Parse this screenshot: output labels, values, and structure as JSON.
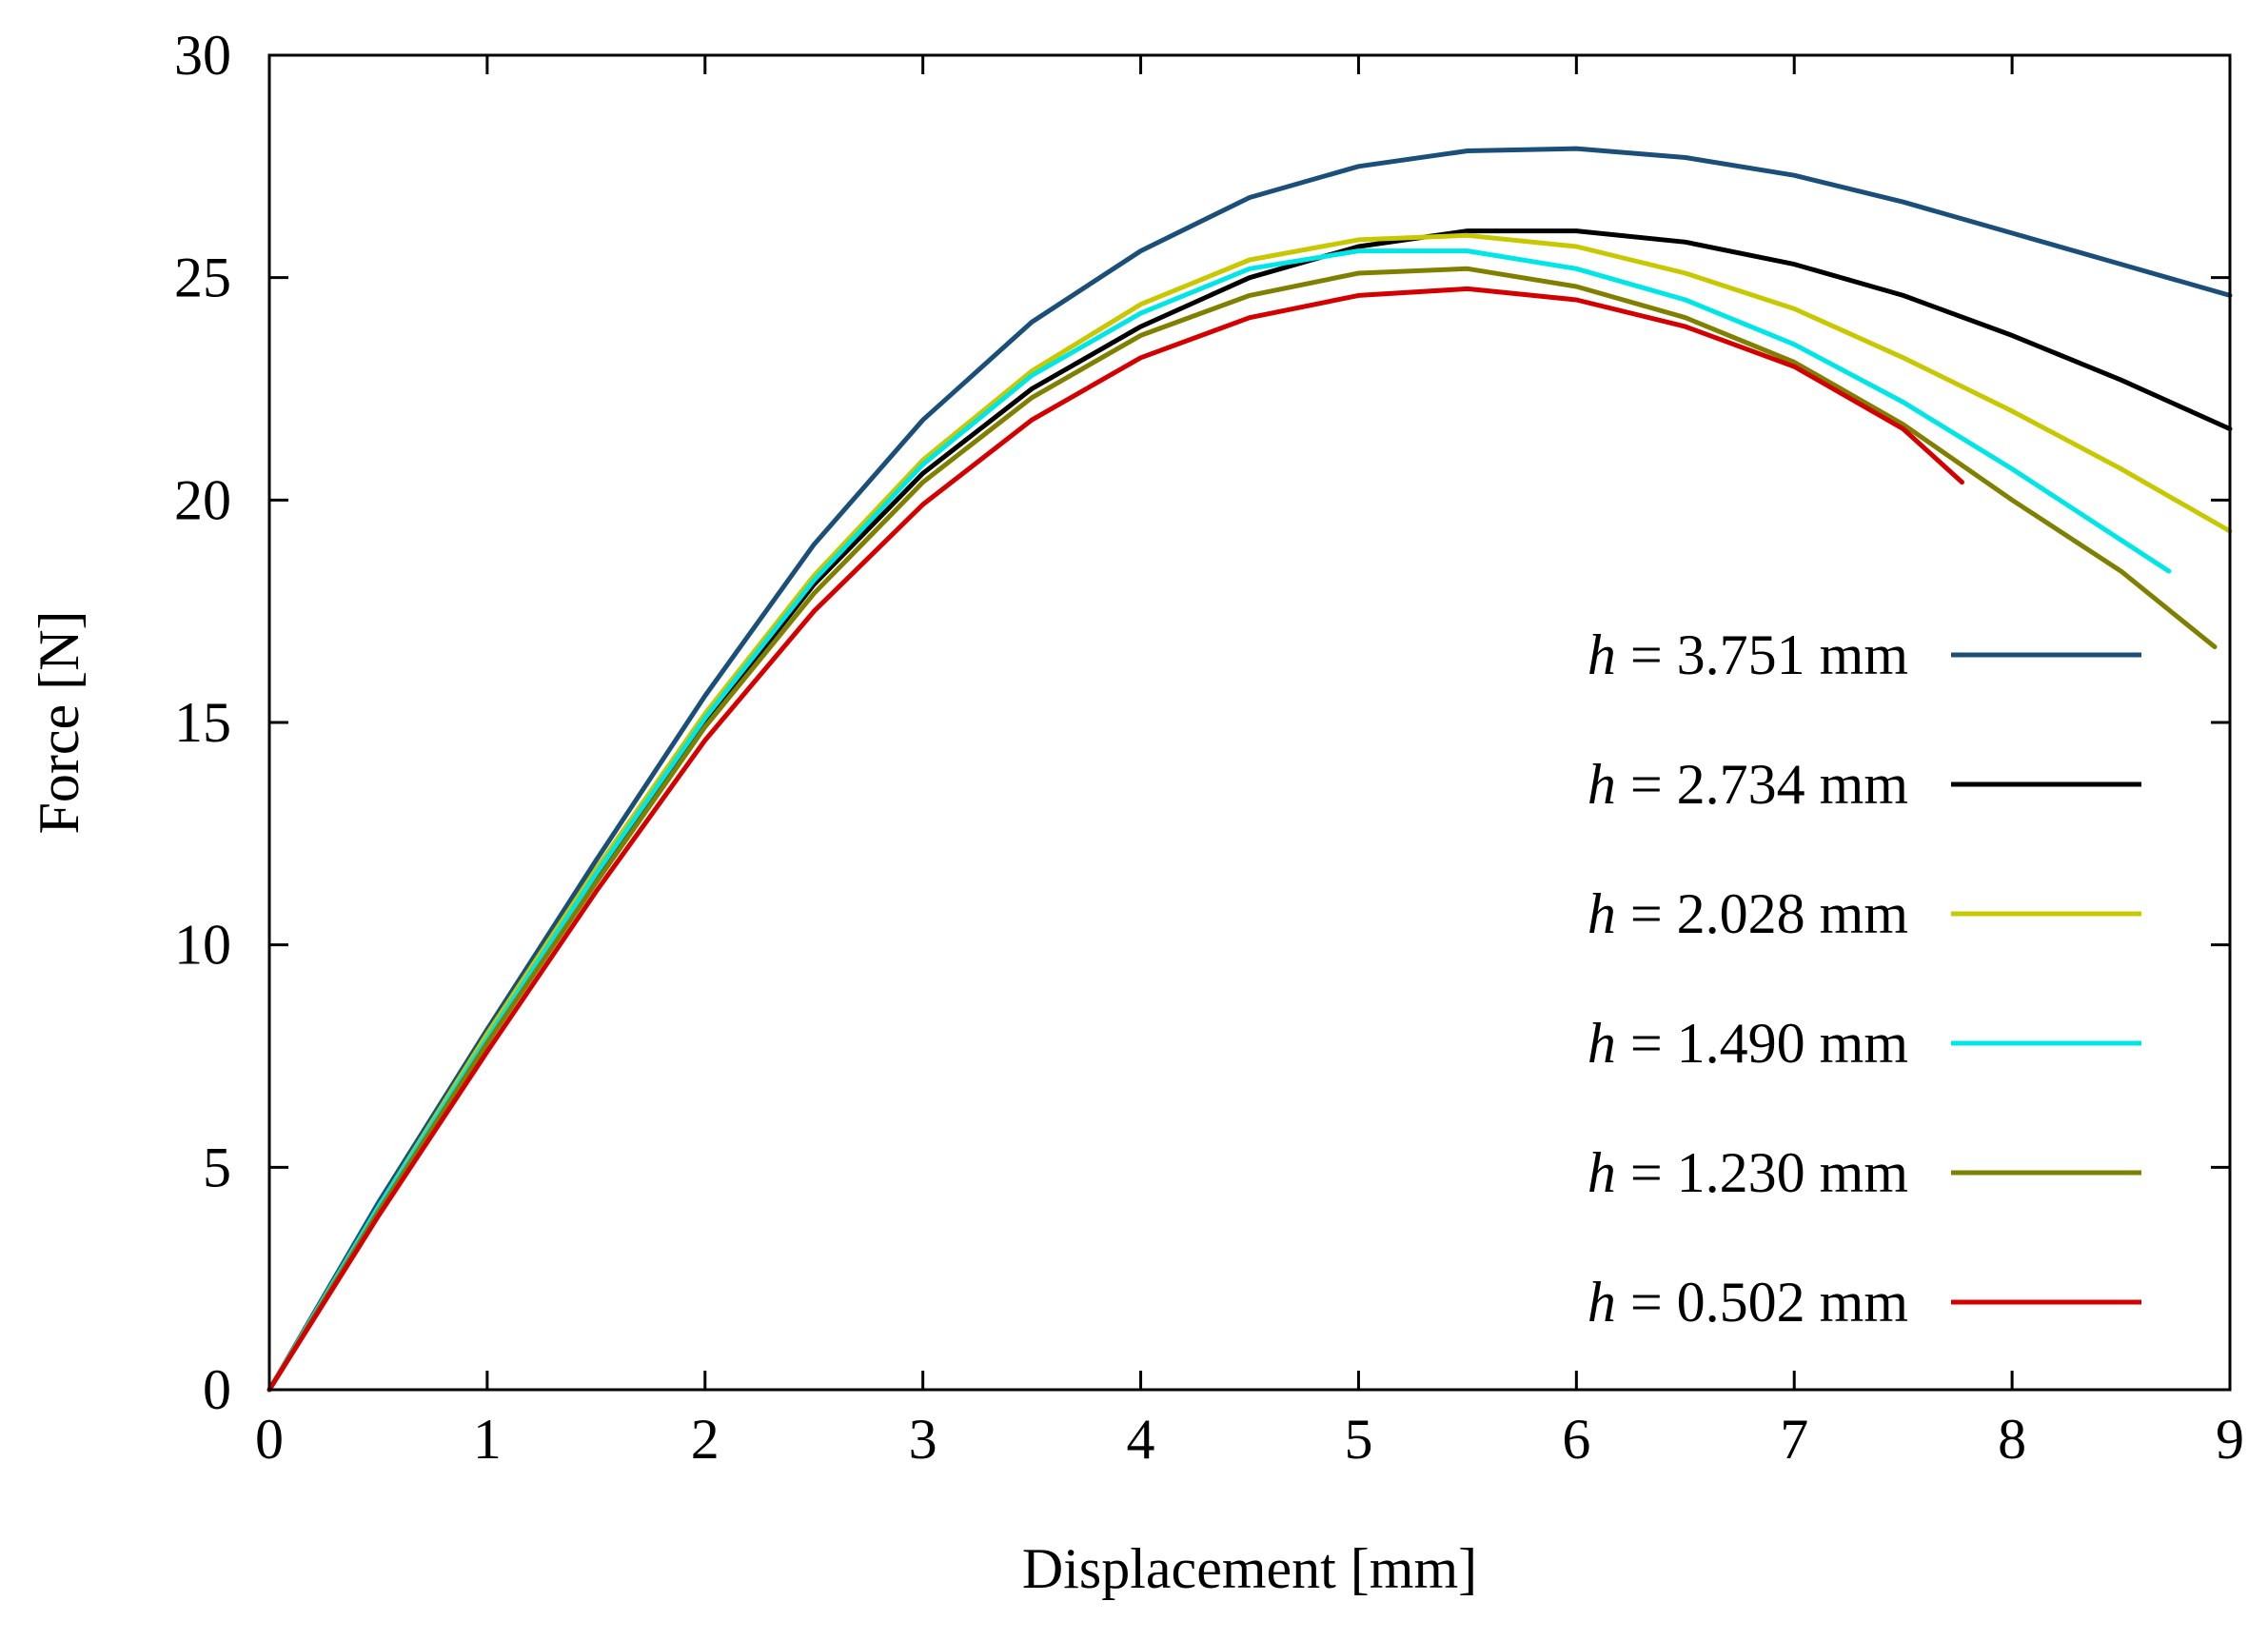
{
  "chart_data": {
    "type": "line",
    "title": "",
    "xlabel": "Displacement [mm]",
    "ylabel": "Force [N]",
    "xlim": [
      0,
      9
    ],
    "ylim": [
      0,
      30
    ],
    "xticks": [
      0,
      1,
      2,
      3,
      4,
      5,
      6,
      7,
      8,
      9
    ],
    "yticks": [
      0,
      5,
      10,
      15,
      20,
      25,
      30
    ],
    "grid": false,
    "legend_position": "right",
    "series": [
      {
        "name": "h = 3.751 mm",
        "var": "h",
        "eq": "=",
        "value": "3.751",
        "unit": "mm",
        "color": "#1a4f7a",
        "x": [
          0,
          0.5,
          1,
          1.5,
          2,
          2.5,
          3,
          3.5,
          4,
          4.5,
          5,
          5.5,
          6,
          6.5,
          7,
          7.5,
          8,
          8.5,
          9
        ],
        "y": [
          0,
          4.2,
          8.1,
          11.9,
          15.6,
          19.0,
          21.8,
          24.0,
          25.6,
          26.8,
          27.5,
          27.85,
          27.9,
          27.7,
          27.3,
          26.7,
          26.0,
          25.3,
          24.6
        ]
      },
      {
        "name": "h = 2.734 mm",
        "var": "h",
        "eq": "=",
        "value": "2.734",
        "unit": "mm",
        "color": "#000000",
        "x": [
          0,
          0.5,
          1,
          1.5,
          2,
          2.5,
          3,
          3.5,
          4,
          4.5,
          5,
          5.5,
          6,
          6.5,
          7,
          7.5,
          8,
          8.5,
          9
        ],
        "y": [
          0,
          4.0,
          7.8,
          11.5,
          15.0,
          18.1,
          20.6,
          22.5,
          23.9,
          25.0,
          25.7,
          26.05,
          26.05,
          25.8,
          25.3,
          24.6,
          23.7,
          22.7,
          21.6
        ]
      },
      {
        "name": "h = 2.028 mm",
        "var": "h",
        "eq": "=",
        "value": "2.028",
        "unit": "mm",
        "color": "#c8c800",
        "x": [
          0,
          0.5,
          1,
          1.5,
          2,
          2.5,
          3,
          3.5,
          4,
          4.5,
          5,
          5.5,
          6,
          6.5,
          7,
          7.5,
          8,
          8.5,
          9
        ],
        "y": [
          0,
          4.1,
          8.0,
          11.7,
          15.2,
          18.3,
          20.9,
          22.9,
          24.4,
          25.4,
          25.85,
          25.95,
          25.7,
          25.1,
          24.3,
          23.2,
          22.0,
          20.7,
          19.3
        ]
      },
      {
        "name": "h = 1.490 mm",
        "var": "h",
        "eq": "=",
        "value": "1.490",
        "unit": "mm",
        "color": "#00e6e6",
        "x": [
          0,
          0.5,
          1,
          1.5,
          2,
          2.5,
          3,
          3.5,
          4,
          4.5,
          5,
          5.5,
          6,
          6.5,
          7,
          7.5,
          8,
          8.5,
          8.72
        ],
        "y": [
          0,
          4.1,
          7.9,
          11.6,
          15.1,
          18.2,
          20.8,
          22.8,
          24.2,
          25.2,
          25.6,
          25.6,
          25.2,
          24.5,
          23.5,
          22.2,
          20.7,
          19.1,
          18.4
        ]
      },
      {
        "name": "h = 1.230 mm",
        "var": "h",
        "eq": "=",
        "value": "1.230",
        "unit": "mm",
        "color": "#808000",
        "x": [
          0,
          0.5,
          1,
          1.5,
          2,
          2.5,
          3,
          3.5,
          4,
          4.5,
          5,
          5.5,
          6,
          6.5,
          7,
          7.5,
          8,
          8.5,
          8.93
        ],
        "y": [
          0,
          4.0,
          7.8,
          11.4,
          14.9,
          17.9,
          20.4,
          22.3,
          23.7,
          24.6,
          25.1,
          25.2,
          24.8,
          24.1,
          23.1,
          21.7,
          20.0,
          18.4,
          16.7
        ]
      },
      {
        "name": "h = 0.502 mm",
        "var": "h",
        "eq": "=",
        "value": "0.502",
        "unit": "mm",
        "color": "#d40000",
        "x": [
          0,
          0.5,
          1,
          1.5,
          2,
          2.5,
          3,
          3.5,
          4,
          4.5,
          5,
          5.5,
          6,
          6.5,
          7,
          7.5,
          7.77
        ],
        "y": [
          0,
          3.9,
          7.6,
          11.2,
          14.6,
          17.5,
          19.9,
          21.8,
          23.2,
          24.1,
          24.6,
          24.75,
          24.5,
          23.9,
          23.0,
          21.6,
          20.4
        ]
      }
    ]
  }
}
